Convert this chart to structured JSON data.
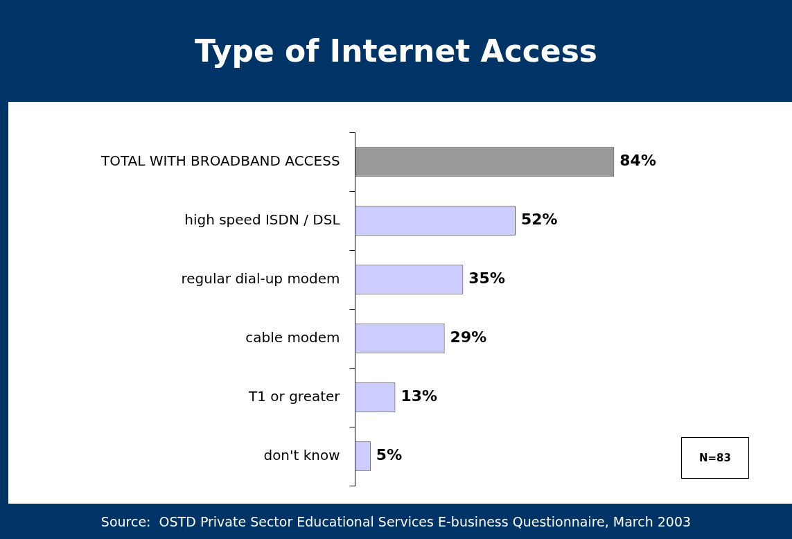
{
  "chart_data": {
    "type": "bar",
    "orientation": "horizontal",
    "title": "Type of Internet Access",
    "categories": [
      "TOTAL WITH BROADBAND ACCESS",
      "high speed ISDN / DSL",
      "regular dial-up modem",
      "cable modem",
      "T1 or greater",
      "don't know"
    ],
    "values": [
      84,
      52,
      35,
      29,
      13,
      5
    ],
    "colors": [
      "#999999",
      "#ccccff",
      "#ccccff",
      "#ccccff",
      "#ccccff",
      "#ccccff"
    ],
    "value_labels": [
      "84%",
      "52%",
      "35%",
      "29%",
      "13%",
      "5%"
    ],
    "legend": false,
    "annotations": [
      "N=83",
      "Source:  OSTD Private Sector Educational Services E-business Questionnaire, March 2003"
    ]
  }
}
